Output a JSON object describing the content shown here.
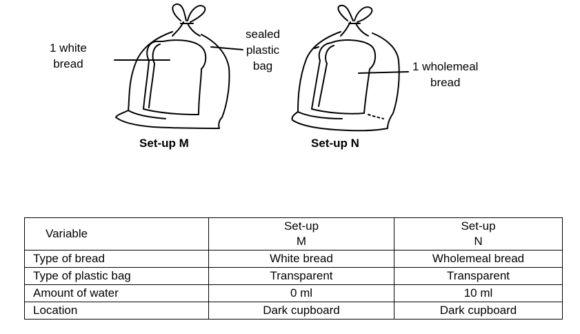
{
  "labels": {
    "white_bread": [
      "1 white",
      "bread"
    ],
    "plastic_bag": [
      "sealed",
      "plastic",
      "bag"
    ],
    "wholemeal_bread": [
      "1 wholemeal",
      "bread"
    ]
  },
  "captions": {
    "setup_m": "Set-up M",
    "setup_n": "Set-up N"
  },
  "table": {
    "headers": {
      "variable": "Variable",
      "m_line1": "Set-up",
      "m_line2": "M",
      "n_line1": "Set-up",
      "n_line2": "N"
    },
    "rows": [
      {
        "variable": "Type of bread",
        "m": "White bread",
        "n": "Wholemeal bread"
      },
      {
        "variable": "Type of plastic bag",
        "m": "Transparent",
        "n": "Transparent"
      },
      {
        "variable": "Amount of water",
        "m": "0 ml",
        "n": "10 ml"
      },
      {
        "variable": "Location",
        "m": "Dark cupboard",
        "n": "Dark cupboard"
      }
    ]
  }
}
